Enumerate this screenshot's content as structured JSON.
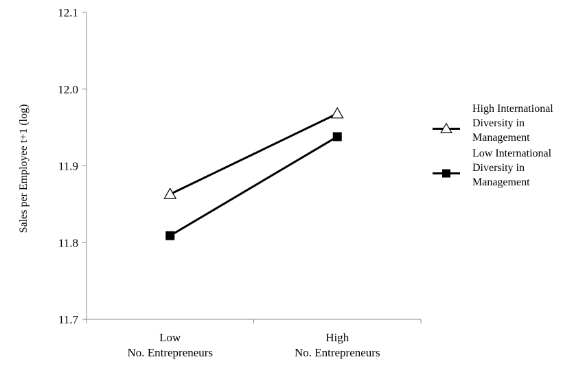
{
  "chart_data": {
    "type": "line",
    "title": "",
    "xlabel": "",
    "ylabel": "Sales per Employee t+1 (log)",
    "categories": [
      [
        "Low",
        "No. Entrepreneurs"
      ],
      [
        "High",
        "No. Entrepreneurs"
      ]
    ],
    "ylim": [
      11.7,
      12.1
    ],
    "yticks": [
      "11.7",
      "11.8",
      "11.9",
      "12.0",
      "12.1"
    ],
    "grid": false,
    "legend_position": "right",
    "series": [
      {
        "name_lines": [
          "High International",
          "Diversity in",
          "Management"
        ],
        "marker": "open-triangle",
        "color": "#000000",
        "values": [
          11.863,
          11.968
        ]
      },
      {
        "name_lines": [
          "Low International",
          "Diversity in",
          "Management"
        ],
        "marker": "filled-square",
        "color": "#000000",
        "values": [
          11.809,
          11.938
        ]
      }
    ]
  }
}
